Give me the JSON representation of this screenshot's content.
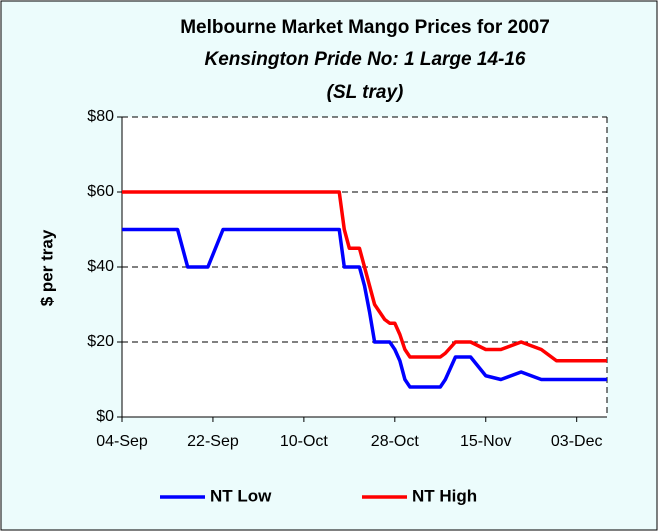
{
  "chart_data": {
    "type": "line",
    "title": "Melbourne Market Mango Prices for 2007",
    "subtitle": [
      "Kensington Pride No: 1 Large 14-16",
      "(SL tray)"
    ],
    "y_label": "$ per tray",
    "x": [
      0,
      11,
      13,
      17,
      20,
      43,
      44,
      45,
      47,
      48,
      49,
      50,
      52,
      53,
      54,
      55,
      56,
      57,
      63,
      64,
      66,
      69,
      72,
      75,
      79,
      83,
      86,
      96
    ],
    "series": [
      {
        "name": "NT Low",
        "color": "#0000ff",
        "values": [
          50,
          50,
          40,
          40,
          50,
          50,
          40,
          40,
          40,
          35,
          28,
          20,
          20,
          20,
          18,
          15,
          10,
          8,
          8,
          10,
          16,
          16,
          11,
          10,
          12,
          10,
          10,
          10
        ]
      },
      {
        "name": "NT High",
        "color": "#ff0000",
        "values": [
          60,
          60,
          60,
          60,
          60,
          60,
          50,
          45,
          45,
          40,
          35,
          30,
          26,
          25,
          25,
          22,
          18,
          16,
          16,
          17,
          20,
          20,
          18,
          18,
          20,
          18,
          15,
          15
        ]
      }
    ],
    "xlim": [
      0,
      96
    ],
    "xticks": [
      {
        "value": 0,
        "label": "04-Sep"
      },
      {
        "value": 18,
        "label": "22-Sep"
      },
      {
        "value": 36,
        "label": "10-Oct"
      },
      {
        "value": 54,
        "label": "28-Oct"
      },
      {
        "value": 72,
        "label": "15-Nov"
      },
      {
        "value": 90,
        "label": "03-Dec"
      }
    ],
    "ylim": [
      0,
      80
    ],
    "yticks": [
      {
        "value": 0,
        "label": "$0"
      },
      {
        "value": 20,
        "label": "$20"
      },
      {
        "value": 40,
        "label": "$40"
      },
      {
        "value": 60,
        "label": "$60"
      },
      {
        "value": 80,
        "label": "$80"
      }
    ],
    "grid": true,
    "legend": "bottom"
  }
}
